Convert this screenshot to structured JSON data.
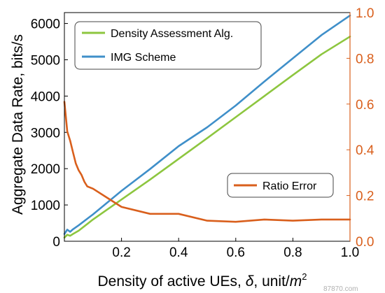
{
  "chart_data": {
    "type": "line",
    "title": "",
    "xlabel": {
      "prefix": "Density of active UEs, ",
      "symbol": "δ",
      "suffix": ", unit/",
      "unit_base": "m",
      "unit_exp": "2"
    },
    "ylabel_left": "Aggregate Data Rate, bits/s",
    "ylabel_right": "",
    "xlim": [
      0,
      1.0
    ],
    "ylim_left": [
      0,
      6300
    ],
    "ylim_right": [
      0,
      1.0
    ],
    "x_ticks": [
      "0.2",
      "0.4",
      "0.6",
      "0.8",
      "1.0"
    ],
    "x_tick_values": [
      0.2,
      0.4,
      0.6,
      0.8,
      1.0
    ],
    "y_ticks_left": [
      "0",
      "1000",
      "2000",
      "3000",
      "4000",
      "5000",
      "6000"
    ],
    "y_tick_values_left": [
      0,
      1000,
      2000,
      3000,
      4000,
      5000,
      6000
    ],
    "y_ticks_right": [
      "0.0",
      "0.2",
      "0.4",
      "0.6",
      "0.8",
      "1.0"
    ],
    "y_tick_values_right": [
      0,
      0.2,
      0.4,
      0.6,
      0.8,
      1.0
    ],
    "grid": false,
    "series": [
      {
        "name": "Density Assessment Alg.",
        "axis": "left",
        "color": "#8dc63f",
        "x": [
          0.0,
          0.01,
          0.02,
          0.03,
          0.05,
          0.1,
          0.2,
          0.3,
          0.4,
          0.5,
          0.6,
          0.7,
          0.8,
          0.9,
          1.0
        ],
        "y": [
          100,
          180,
          150,
          200,
          290,
          600,
          1150,
          1700,
          2270,
          2840,
          3420,
          4000,
          4580,
          5150,
          5640
        ]
      },
      {
        "name": "IMG Scheme",
        "axis": "left",
        "color": "#3f8fc9",
        "x": [
          0.0,
          0.01,
          0.02,
          0.03,
          0.05,
          0.1,
          0.2,
          0.3,
          0.4,
          0.5,
          0.6,
          0.7,
          0.8,
          0.9,
          1.0
        ],
        "y": [
          200,
          320,
          260,
          330,
          440,
          740,
          1390,
          1990,
          2620,
          3140,
          3740,
          4400,
          5040,
          5680,
          6220
        ]
      },
      {
        "name": "Ratio Error",
        "axis": "right",
        "color": "#d95f1c",
        "x": [
          0.0,
          0.01,
          0.02,
          0.03,
          0.04,
          0.05,
          0.06,
          0.07,
          0.08,
          0.1,
          0.15,
          0.2,
          0.3,
          0.4,
          0.5,
          0.6,
          0.7,
          0.8,
          0.9,
          1.0
        ],
        "y": [
          0.61,
          0.48,
          0.44,
          0.39,
          0.34,
          0.31,
          0.29,
          0.26,
          0.24,
          0.23,
          0.19,
          0.15,
          0.12,
          0.12,
          0.09,
          0.085,
          0.095,
          0.09,
          0.095,
          0.095
        ]
      }
    ],
    "legends": [
      {
        "entries": [
          "Density Assessment Alg.",
          "IMG Scheme"
        ],
        "placement": "top-left"
      },
      {
        "entries": [
          "Ratio Error"
        ],
        "placement": "lower-right"
      }
    ]
  },
  "watermark": "87870.com"
}
